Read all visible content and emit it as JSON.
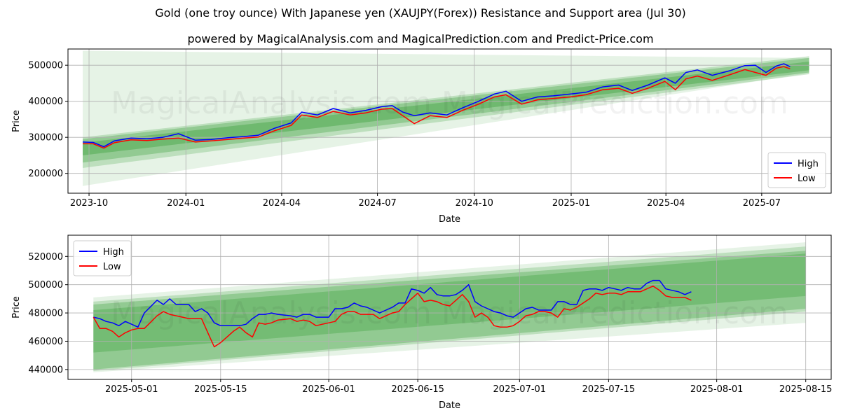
{
  "title": "Gold (one troy ounce) With Japanese yen (XAUJPY(Forex)) Resistance and Support area (Jul 30)",
  "subtitle": "powered by MagicalAnalysis.com and MagicalPrediction.com and Predict-Price.com",
  "watermark": "MagicalAnalysis.com   MagicalPrediction.com",
  "colors": {
    "high": "#0000ff",
    "low": "#ff0000",
    "band": "#2e9c2e"
  },
  "chart_data": [
    {
      "type": "line",
      "xlabel": "Date",
      "ylabel": "Price",
      "xlim": [
        "2023-09-11",
        "2025-09-05"
      ],
      "ylim": [
        145000,
        545000
      ],
      "grid": true,
      "legend_position": "lower-right",
      "x_ticks": [
        {
          "label": "2023-10",
          "date": "2023-10-01"
        },
        {
          "label": "2024-01",
          "date": "2024-01-01"
        },
        {
          "label": "2024-04",
          "date": "2024-04-01"
        },
        {
          "label": "2024-07",
          "date": "2024-07-01"
        },
        {
          "label": "2024-10",
          "date": "2024-10-01"
        },
        {
          "label": "2025-01",
          "date": "2025-01-01"
        },
        {
          "label": "2025-04",
          "date": "2025-04-01"
        },
        {
          "label": "2025-07",
          "date": "2025-07-01"
        }
      ],
      "y_ticks": [
        200000,
        300000,
        400000,
        500000
      ],
      "y_tick_labels": [
        "200000",
        "300000",
        "400000",
        "500000"
      ],
      "bands": [
        {
          "start": "2023-09-25",
          "end": "2025-08-15",
          "lower": [
            165000,
            478000
          ],
          "upper": [
            540000,
            520000
          ],
          "opacity": 0.12
        },
        {
          "start": "2023-09-25",
          "end": "2025-08-15",
          "lower": [
            215000,
            475000
          ],
          "upper": [
            300000,
            525000
          ],
          "opacity": 0.22
        },
        {
          "start": "2023-09-25",
          "end": "2025-08-15",
          "lower": [
            230000,
            480000
          ],
          "upper": [
            295000,
            520000
          ],
          "opacity": 0.3
        },
        {
          "start": "2023-09-25",
          "end": "2025-08-15",
          "lower": [
            250000,
            486000
          ],
          "upper": [
            285000,
            510000
          ],
          "opacity": 0.35
        }
      ],
      "series": [
        {
          "name": "High",
          "color": "#0000ff",
          "x": [
            "2023-09-25",
            "2023-10-05",
            "2023-10-15",
            "2023-10-25",
            "2023-11-10",
            "2023-11-25",
            "2023-12-10",
            "2023-12-25",
            "2024-01-10",
            "2024-01-25",
            "2024-02-10",
            "2024-02-25",
            "2024-03-10",
            "2024-03-25",
            "2024-04-10",
            "2024-04-20",
            "2024-05-05",
            "2024-05-20",
            "2024-06-05",
            "2024-06-20",
            "2024-07-05",
            "2024-07-15",
            "2024-07-25",
            "2024-08-05",
            "2024-08-20",
            "2024-09-05",
            "2024-09-20",
            "2024-10-05",
            "2024-10-20",
            "2024-10-31",
            "2024-11-15",
            "2024-11-30",
            "2024-12-15",
            "2024-12-31",
            "2025-01-15",
            "2025-01-31",
            "2025-02-15",
            "2025-02-28",
            "2025-03-15",
            "2025-03-31",
            "2025-04-10",
            "2025-04-20",
            "2025-05-01",
            "2025-05-15",
            "2025-06-01",
            "2025-06-15",
            "2025-06-25",
            "2025-07-05",
            "2025-07-15",
            "2025-07-22",
            "2025-07-28"
          ],
          "y": [
            287000,
            286000,
            274000,
            290000,
            298000,
            296000,
            300000,
            310000,
            292000,
            294000,
            299000,
            302000,
            306000,
            325000,
            340000,
            370000,
            362000,
            380000,
            368000,
            375000,
            385000,
            388000,
            370000,
            360000,
            368000,
            362000,
            382000,
            400000,
            420000,
            428000,
            400000,
            412000,
            415000,
            420000,
            425000,
            440000,
            445000,
            430000,
            445000,
            465000,
            450000,
            480000,
            487000,
            472000,
            485000,
            499000,
            500000,
            480000,
            498000,
            504000,
            496000
          ]
        },
        {
          "name": "Low",
          "color": "#ff0000",
          "x": [
            "2023-09-25",
            "2023-10-05",
            "2023-10-15",
            "2023-10-25",
            "2023-11-10",
            "2023-11-25",
            "2023-12-10",
            "2023-12-25",
            "2024-01-10",
            "2024-01-25",
            "2024-02-10",
            "2024-02-25",
            "2024-03-10",
            "2024-03-25",
            "2024-04-10",
            "2024-04-20",
            "2024-05-05",
            "2024-05-20",
            "2024-06-05",
            "2024-06-20",
            "2024-07-05",
            "2024-07-15",
            "2024-07-25",
            "2024-08-05",
            "2024-08-20",
            "2024-09-05",
            "2024-09-20",
            "2024-10-05",
            "2024-10-20",
            "2024-10-31",
            "2024-11-15",
            "2024-11-30",
            "2024-12-15",
            "2024-12-31",
            "2025-01-15",
            "2025-01-31",
            "2025-02-15",
            "2025-02-28",
            "2025-03-15",
            "2025-03-31",
            "2025-04-10",
            "2025-04-20",
            "2025-05-01",
            "2025-05-15",
            "2025-06-01",
            "2025-06-15",
            "2025-06-25",
            "2025-07-05",
            "2025-07-15",
            "2025-07-22",
            "2025-07-28"
          ],
          "y": [
            282000,
            282000,
            270000,
            285000,
            293000,
            291000,
            295000,
            298000,
            287000,
            290000,
            294000,
            298000,
            301000,
            318000,
            333000,
            362000,
            355000,
            372000,
            362000,
            368000,
            378000,
            380000,
            360000,
            338000,
            360000,
            355000,
            375000,
            392000,
            412000,
            418000,
            392000,
            404000,
            408000,
            412000,
            418000,
            432000,
            436000,
            422000,
            436000,
            455000,
            432000,
            462000,
            470000,
            458000,
            474000,
            488000,
            480000,
            472000,
            492000,
            496000,
            490000
          ]
        }
      ]
    },
    {
      "type": "line",
      "xlabel": "Date",
      "ylabel": "Price",
      "xlim": [
        "2025-04-21",
        "2025-08-19"
      ],
      "ylim": [
        433000,
        535000
      ],
      "grid": true,
      "legend_position": "upper-left",
      "x_ticks": [
        {
          "label": "2025-05-01",
          "date": "2025-05-01"
        },
        {
          "label": "2025-05-15",
          "date": "2025-05-15"
        },
        {
          "label": "2025-06-01",
          "date": "2025-06-01"
        },
        {
          "label": "2025-06-15",
          "date": "2025-06-15"
        },
        {
          "label": "2025-07-01",
          "date": "2025-07-01"
        },
        {
          "label": "2025-07-15",
          "date": "2025-07-15"
        },
        {
          "label": "2025-08-01",
          "date": "2025-08-01"
        },
        {
          "label": "2025-08-15",
          "date": "2025-08-15"
        }
      ],
      "y_ticks": [
        440000,
        460000,
        480000,
        500000,
        520000
      ],
      "y_tick_labels": [
        "440000",
        "460000",
        "480000",
        "500000",
        "520000"
      ],
      "bands": [
        {
          "start": "2025-04-25",
          "end": "2025-08-15",
          "lower": [
            438000,
            473000
          ],
          "upper": [
            491000,
            530000
          ],
          "opacity": 0.12
        },
        {
          "start": "2025-04-25",
          "end": "2025-08-15",
          "lower": [
            439000,
            481000
          ],
          "upper": [
            488000,
            527000
          ],
          "opacity": 0.22
        },
        {
          "start": "2025-04-25",
          "end": "2025-08-15",
          "lower": [
            440000,
            483000
          ],
          "upper": [
            486000,
            524000
          ],
          "opacity": 0.3
        },
        {
          "start": "2025-04-25",
          "end": "2025-08-15",
          "lower": [
            452000,
            492000
          ],
          "upper": [
            482000,
            522000
          ],
          "opacity": 0.3
        }
      ],
      "series": [
        {
          "name": "High",
          "color": "#0000ff",
          "x": [
            "2025-04-25",
            "2025-04-26",
            "2025-04-27",
            "2025-04-28",
            "2025-04-29",
            "2025-04-30",
            "2025-05-01",
            "2025-05-02",
            "2025-05-03",
            "2025-05-05",
            "2025-05-06",
            "2025-05-07",
            "2025-05-08",
            "2025-05-09",
            "2025-05-10",
            "2025-05-11",
            "2025-05-12",
            "2025-05-13",
            "2025-05-14",
            "2025-05-15",
            "2025-05-16",
            "2025-05-17",
            "2025-05-18",
            "2025-05-19",
            "2025-05-20",
            "2025-05-21",
            "2025-05-22",
            "2025-05-23",
            "2025-05-24",
            "2025-05-26",
            "2025-05-27",
            "2025-05-28",
            "2025-05-29",
            "2025-05-30",
            "2025-05-31",
            "2025-06-01",
            "2025-06-02",
            "2025-06-03",
            "2025-06-04",
            "2025-06-05",
            "2025-06-06",
            "2025-06-07",
            "2025-06-08",
            "2025-06-09",
            "2025-06-10",
            "2025-06-11",
            "2025-06-12",
            "2025-06-13",
            "2025-06-14",
            "2025-06-15",
            "2025-06-16",
            "2025-06-17",
            "2025-06-18",
            "2025-06-19",
            "2025-06-20",
            "2025-06-21",
            "2025-06-22",
            "2025-06-23",
            "2025-06-24",
            "2025-06-25",
            "2025-06-26",
            "2025-06-27",
            "2025-06-28",
            "2025-06-29",
            "2025-06-30",
            "2025-07-01",
            "2025-07-02",
            "2025-07-03",
            "2025-07-04",
            "2025-07-05",
            "2025-07-06",
            "2025-07-07",
            "2025-07-08",
            "2025-07-09",
            "2025-07-10",
            "2025-07-11",
            "2025-07-12",
            "2025-07-13",
            "2025-07-14",
            "2025-07-15",
            "2025-07-16",
            "2025-07-17",
            "2025-07-18",
            "2025-07-19",
            "2025-07-20",
            "2025-07-21",
            "2025-07-22",
            "2025-07-23",
            "2025-07-24",
            "2025-07-25",
            "2025-07-26",
            "2025-07-27",
            "2025-07-28"
          ],
          "y": [
            477000,
            476000,
            474000,
            473000,
            471000,
            474000,
            472000,
            470000,
            480000,
            489000,
            486000,
            490000,
            486000,
            486000,
            486000,
            481000,
            483000,
            480000,
            473000,
            471000,
            471000,
            471000,
            471000,
            472000,
            476000,
            479000,
            479000,
            480000,
            479000,
            478000,
            477000,
            479000,
            479000,
            477000,
            477000,
            477000,
            483000,
            483000,
            484000,
            487000,
            485000,
            484000,
            482000,
            480000,
            482000,
            484000,
            487000,
            487000,
            497000,
            496000,
            494000,
            498000,
            493000,
            492000,
            492000,
            493000,
            496000,
            500000,
            488000,
            485000,
            483000,
            481000,
            480000,
            478000,
            477000,
            480000,
            483000,
            484000,
            482000,
            482000,
            482000,
            488000,
            488000,
            486000,
            486000,
            496000,
            497000,
            497000,
            496000,
            498000,
            497000,
            496000,
            498000,
            497000,
            497000,
            501000,
            503000,
            503000,
            497000,
            496000,
            495000,
            493000,
            495000
          ]
        },
        {
          "name": "Low",
          "color": "#ff0000",
          "x": [
            "2025-04-25",
            "2025-04-26",
            "2025-04-27",
            "2025-04-28",
            "2025-04-29",
            "2025-04-30",
            "2025-05-01",
            "2025-05-02",
            "2025-05-03",
            "2025-05-05",
            "2025-05-06",
            "2025-05-07",
            "2025-05-08",
            "2025-05-09",
            "2025-05-10",
            "2025-05-11",
            "2025-05-12",
            "2025-05-13",
            "2025-05-14",
            "2025-05-15",
            "2025-05-16",
            "2025-05-17",
            "2025-05-18",
            "2025-05-19",
            "2025-05-20",
            "2025-05-21",
            "2025-05-22",
            "2025-05-23",
            "2025-05-24",
            "2025-05-26",
            "2025-05-27",
            "2025-05-28",
            "2025-05-29",
            "2025-05-30",
            "2025-05-31",
            "2025-06-01",
            "2025-06-02",
            "2025-06-03",
            "2025-06-04",
            "2025-06-05",
            "2025-06-06",
            "2025-06-07",
            "2025-06-08",
            "2025-06-09",
            "2025-06-10",
            "2025-06-11",
            "2025-06-12",
            "2025-06-13",
            "2025-06-14",
            "2025-06-15",
            "2025-06-16",
            "2025-06-17",
            "2025-06-18",
            "2025-06-19",
            "2025-06-20",
            "2025-06-21",
            "2025-06-22",
            "2025-06-23",
            "2025-06-24",
            "2025-06-25",
            "2025-06-26",
            "2025-06-27",
            "2025-06-28",
            "2025-06-29",
            "2025-06-30",
            "2025-07-01",
            "2025-07-02",
            "2025-07-03",
            "2025-07-04",
            "2025-07-05",
            "2025-07-06",
            "2025-07-07",
            "2025-07-08",
            "2025-07-09",
            "2025-07-10",
            "2025-07-11",
            "2025-07-12",
            "2025-07-13",
            "2025-07-14",
            "2025-07-15",
            "2025-07-16",
            "2025-07-17",
            "2025-07-18",
            "2025-07-19",
            "2025-07-20",
            "2025-07-21",
            "2025-07-22",
            "2025-07-23",
            "2025-07-24",
            "2025-07-25",
            "2025-07-26",
            "2025-07-27",
            "2025-07-28"
          ],
          "y": [
            477000,
            469000,
            469000,
            467000,
            463000,
            466000,
            468000,
            469000,
            469000,
            478000,
            481000,
            479000,
            478000,
            477000,
            476000,
            476000,
            476000,
            466000,
            456000,
            459000,
            463000,
            467000,
            470000,
            466000,
            463000,
            473000,
            472000,
            473000,
            475000,
            476000,
            474000,
            475000,
            474000,
            471000,
            472000,
            473000,
            474000,
            479000,
            481000,
            481000,
            479000,
            479000,
            479000,
            476000,
            478000,
            480000,
            481000,
            486000,
            490000,
            494000,
            488000,
            489000,
            488000,
            486000,
            485000,
            489000,
            493000,
            488000,
            477000,
            480000,
            477000,
            471000,
            470000,
            470000,
            471000,
            474000,
            478000,
            479000,
            481000,
            481000,
            480000,
            477000,
            483000,
            482000,
            484000,
            487000,
            490000,
            494000,
            493000,
            494000,
            494000,
            493000,
            495000,
            495000,
            495000,
            497000,
            499000,
            496000,
            492000,
            491000,
            491000,
            491000,
            489000
          ]
        }
      ]
    }
  ]
}
